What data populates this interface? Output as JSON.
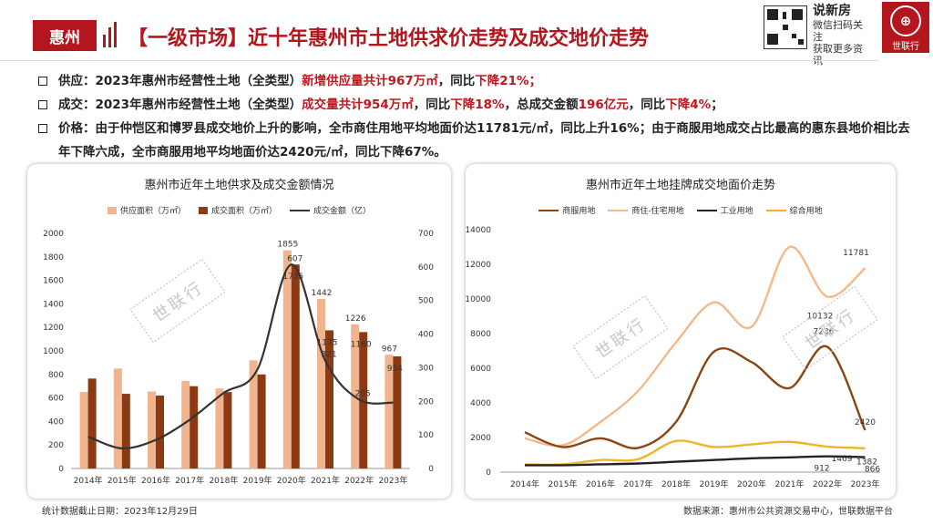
{
  "header": {
    "city": "惠州",
    "title": "【一级市场】近十年惠州市土地供求价走势及成交地价走势",
    "brand_name": "说新房",
    "brand_line1": "微信扫码关注",
    "brand_line2": "获取更多资讯",
    "logo_text": "世联行"
  },
  "bullets": [
    {
      "pre": "供应：2023年惠州市经营性土地（全类型）",
      "hl1": "新增供应量共计967万㎡",
      "mid1": "，同比",
      "hl2": "下降21%；",
      "mid2": "",
      "hl3": "",
      "mid3": "",
      "hl4": "",
      "post": ""
    },
    {
      "pre": "成交：2023年惠州市经营性土地（全类型）",
      "hl1": "成交量共计954万㎡",
      "mid1": "，同比",
      "hl2": "下降18%",
      "mid2": "，总成交金额",
      "hl3": "196亿元",
      "mid3": "，同比",
      "hl4": "下降4%",
      "post": "；"
    },
    {
      "pre": "价格：由于仲恺区和博罗县成交地价上升的影响，全市商住用地平均地面价达11781元/㎡，同比上升16%；由于商服用地成交占比最高的惠东县地价相比去年下降六成，全市商服用地平均地面价达2420元/㎡，同比下降67%。",
      "hl1": "",
      "mid1": "",
      "hl2": "",
      "mid2": "",
      "hl3": "",
      "mid3": "",
      "hl4": "",
      "post": ""
    }
  ],
  "watermark": "世联行",
  "footer": {
    "left": "统计数据截止日期：2023年12月29日",
    "right": "数据来源：惠州市公共资源交易中心，世联数据平台"
  },
  "colors": {
    "brand": "#b3161d",
    "supply": "#f0b48e",
    "deal": "#8b3a14",
    "amount": "#333333",
    "commercial": "#8b4513",
    "residential": "#f6b88a",
    "industrial": "#222222",
    "mixed": "#f0b429"
  },
  "chart_data": [
    {
      "type": "bar",
      "title": "惠州市近年土地供求及成交金额情况",
      "categories": [
        "2014年",
        "2015年",
        "2016年",
        "2017年",
        "2018年",
        "2019年",
        "2020年",
        "2021年",
        "2022年",
        "2023年"
      ],
      "series": [
        {
          "name": "供应面积（万㎡）",
          "kind": "bar",
          "axis": "left",
          "values": [
            650,
            850,
            655,
            745,
            680,
            920,
            1855,
            1442,
            1226,
            967
          ]
        },
        {
          "name": "成交面积（万㎡）",
          "kind": "bar",
          "axis": "left",
          "values": [
            765,
            635,
            620,
            700,
            650,
            800,
            1735,
            1175,
            1160,
            954
          ]
        },
        {
          "name": "成交金额（亿）",
          "kind": "line",
          "axis": "right",
          "values": [
            95,
            60,
            85,
            145,
            225,
            295,
            607,
            321,
            205,
            196
          ]
        }
      ],
      "ylim_left": [
        0,
        2000
      ],
      "yticks_left": [
        0,
        200,
        400,
        600,
        800,
        1000,
        1200,
        1400,
        1600,
        1800,
        2000
      ],
      "ylim_right": [
        0,
        700
      ],
      "yticks_right": [
        0,
        100,
        200,
        300,
        400,
        500,
        600,
        700
      ],
      "data_labels": [
        {
          "series": 0,
          "index": 6,
          "text": "1855"
        },
        {
          "series": 2,
          "index": 6,
          "text": "607"
        },
        {
          "series": 1,
          "index": 6,
          "text": "1735"
        },
        {
          "series": 0,
          "index": 7,
          "text": "1442"
        },
        {
          "series": 2,
          "index": 7,
          "text": "321"
        },
        {
          "series": 1,
          "index": 7,
          "text": "1175"
        },
        {
          "series": 0,
          "index": 8,
          "text": "1226"
        },
        {
          "series": 1,
          "index": 8,
          "text": "1160"
        },
        {
          "series": 2,
          "index": 8,
          "text": "205"
        },
        {
          "series": 0,
          "index": 9,
          "text": "967"
        },
        {
          "series": 1,
          "index": 9,
          "text": "954"
        }
      ],
      "legend": "top",
      "grid": false
    },
    {
      "type": "line",
      "title": "惠州市近年土地挂牌成交地面价走势",
      "categories": [
        "2014年",
        "2015年",
        "2016年",
        "2017年",
        "2018年",
        "2019年",
        "2020年",
        "2021年",
        "2022年",
        "2023年"
      ],
      "series": [
        {
          "name": "商服用地",
          "values": [
            2300,
            1450,
            1950,
            1400,
            2900,
            6950,
            6350,
            4850,
            7236,
            2420
          ]
        },
        {
          "name": "商住-住宅用地",
          "values": [
            1950,
            1550,
            2900,
            4700,
            7500,
            9800,
            8400,
            13000,
            10132,
            11781
          ]
        },
        {
          "name": "工业用地",
          "values": [
            400,
            400,
            450,
            500,
            600,
            700,
            800,
            850,
            912,
            866
          ]
        },
        {
          "name": "综合用地",
          "values": [
            450,
            450,
            700,
            750,
            1800,
            1450,
            1600,
            1750,
            1469,
            1382
          ]
        }
      ],
      "ylim": [
        0,
        14000
      ],
      "yticks": [
        0,
        2000,
        4000,
        6000,
        8000,
        10000,
        12000,
        14000
      ],
      "data_labels": [
        {
          "series": 1,
          "index": 9,
          "text": "11781"
        },
        {
          "series": 1,
          "index": 8,
          "text": "10132"
        },
        {
          "series": 0,
          "index": 8,
          "text": "7236"
        },
        {
          "series": 0,
          "index": 9,
          "text": "2420"
        },
        {
          "series": 3,
          "index": 8,
          "text": "1469"
        },
        {
          "series": 3,
          "index": 9,
          "text": "1382"
        },
        {
          "series": 2,
          "index": 8,
          "text": "912"
        },
        {
          "series": 2,
          "index": 9,
          "text": "866"
        }
      ],
      "legend": "top",
      "grid": false
    }
  ]
}
